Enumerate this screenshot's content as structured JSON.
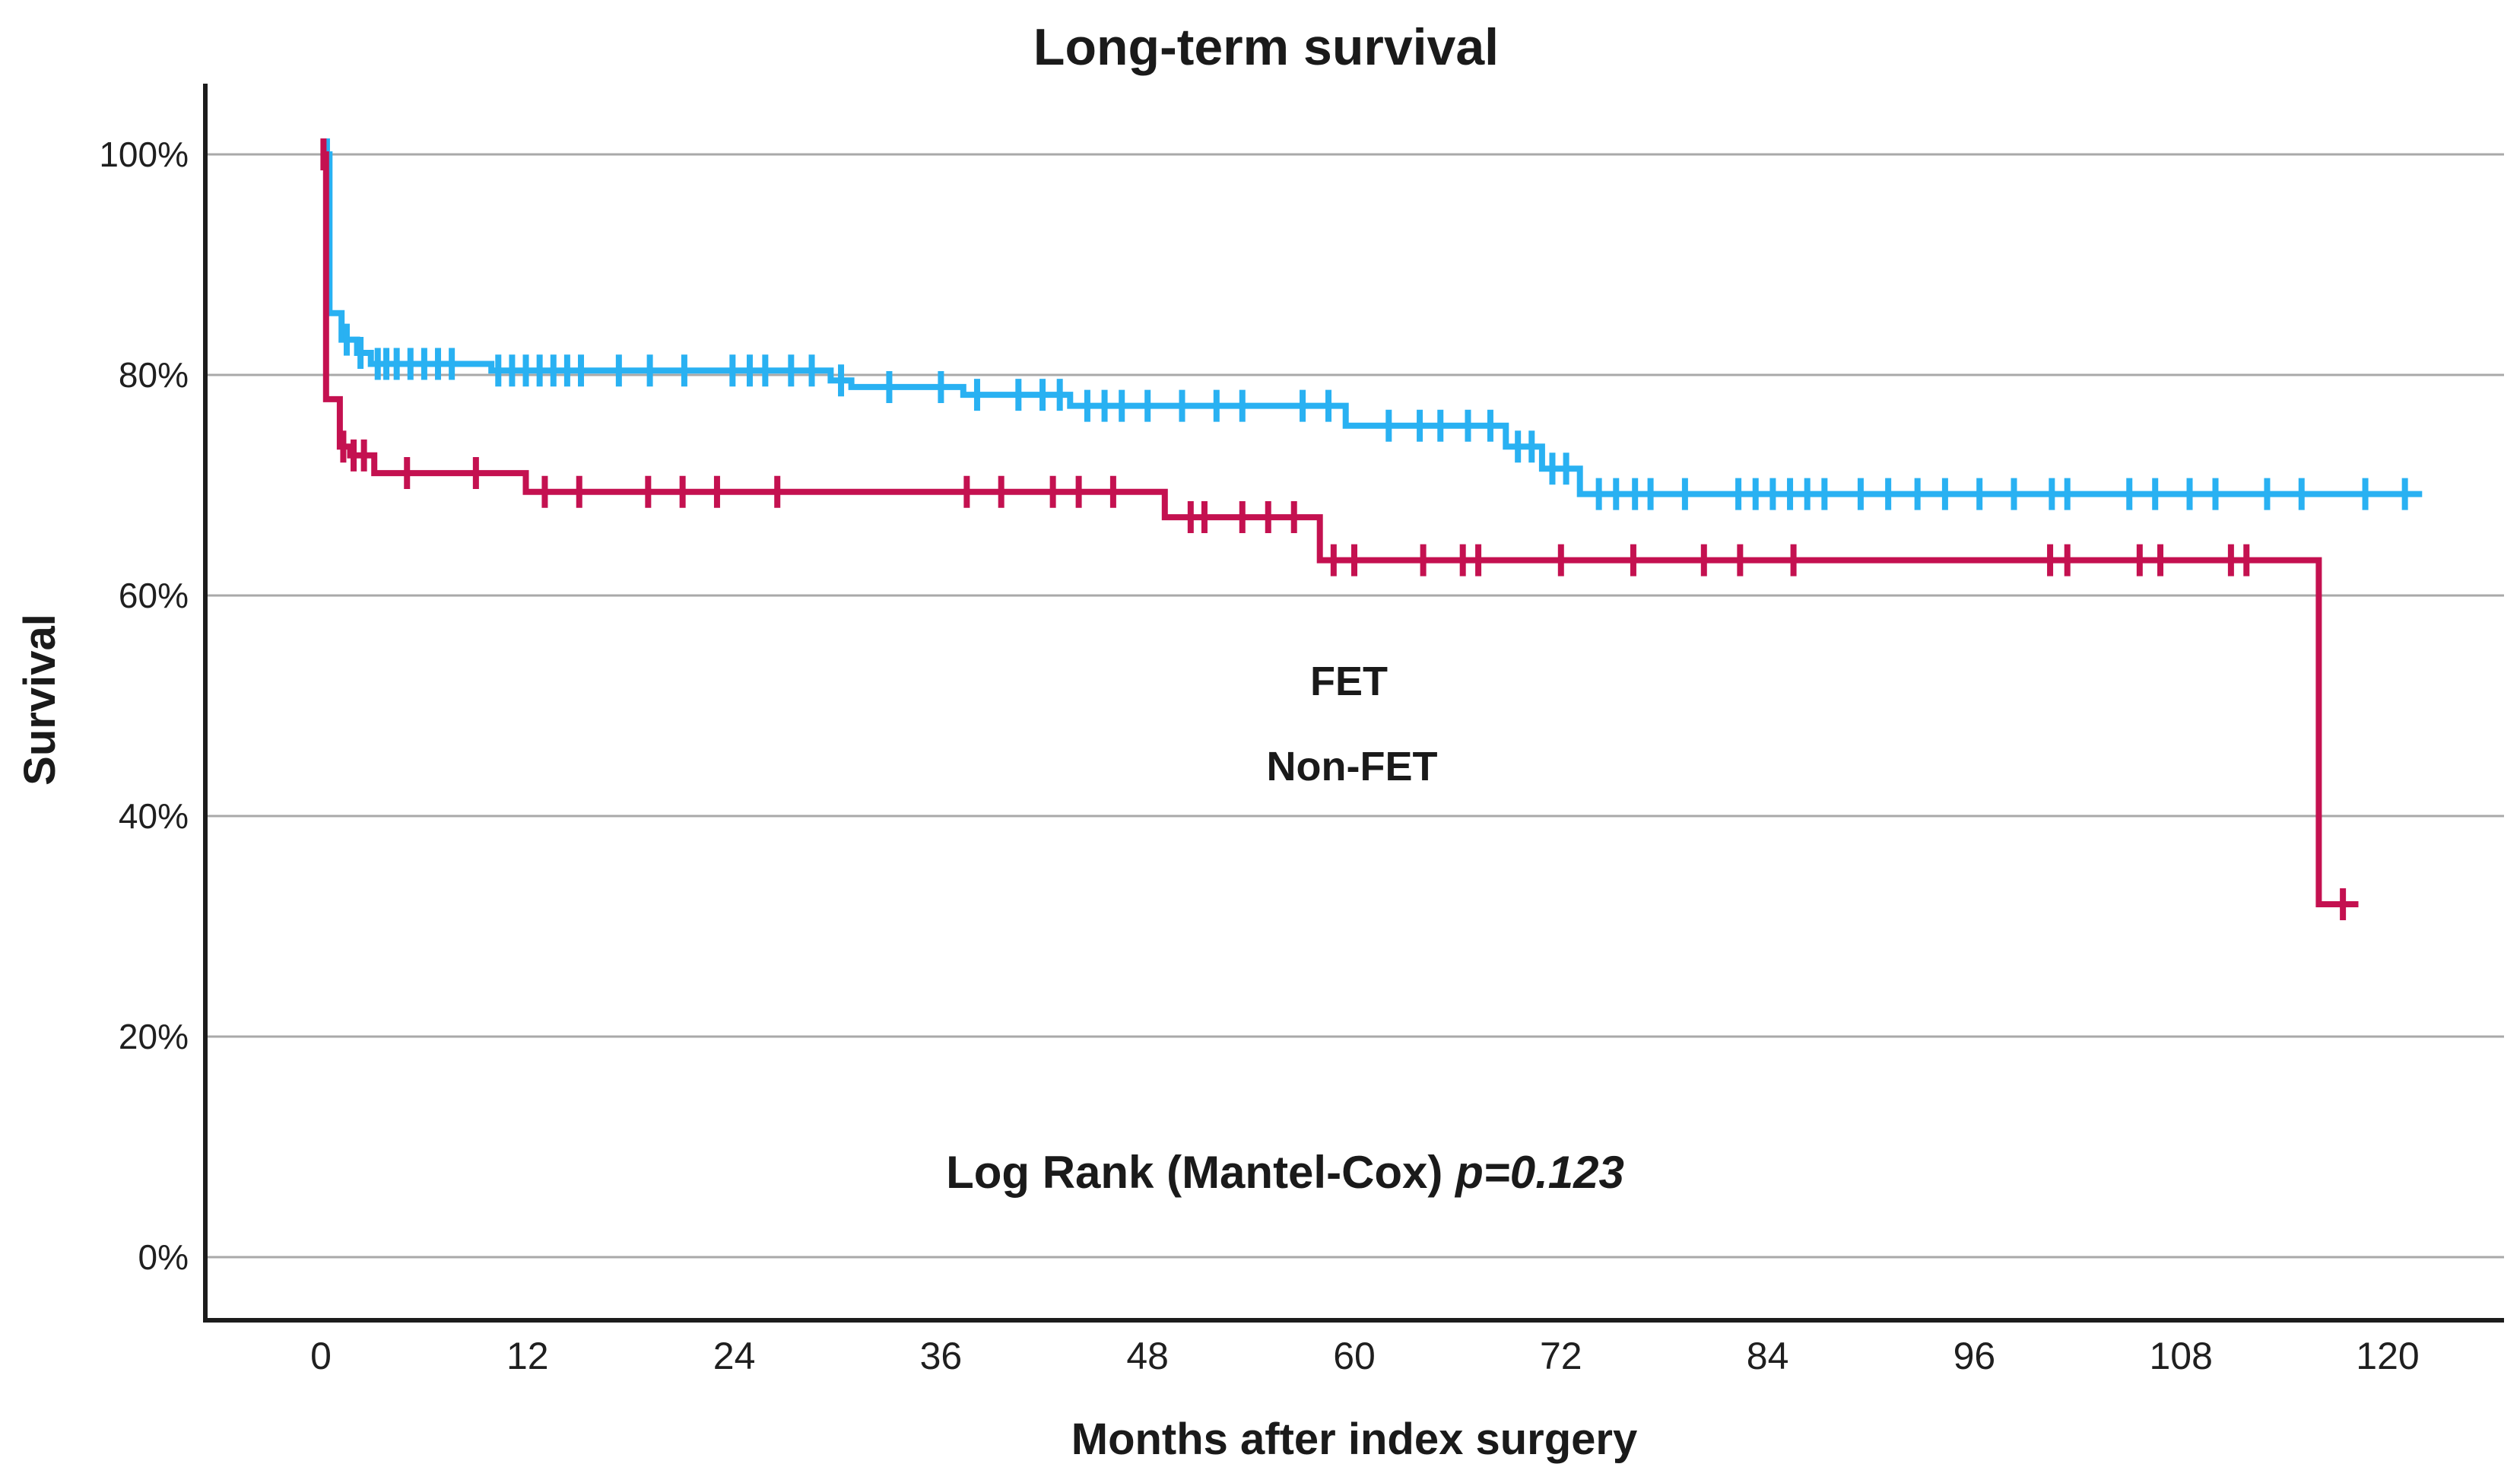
{
  "title": "Long-term survival",
  "colors": {
    "fet_curve": "#C41150",
    "nonfet_curve": "#29B1F2",
    "fet_label": "#ED1C4E",
    "nonfet_label": "#4A92E0",
    "grid": "#A9A9A9",
    "axis": "#1C1C1C",
    "text": "#1A1A1A"
  },
  "chart_data": {
    "type": "line",
    "subtype": "kaplan-meier-step",
    "title": "Long-term survival",
    "xlabel": "Months after index surgery",
    "ylabel": "Survival",
    "annotation": {
      "prefix": "Log Rank (Mantel-Cox) ",
      "p_value": "p=0.123"
    },
    "x_ticks": [
      0,
      12,
      24,
      36,
      48,
      60,
      72,
      84,
      96,
      108,
      120
    ],
    "y_ticks": [
      {
        "value": 0,
        "label": "0%"
      },
      {
        "value": 20,
        "label": "20%"
      },
      {
        "value": 40,
        "label": "40%"
      },
      {
        "value": 60,
        "label": "60%"
      },
      {
        "value": 80,
        "label": "80%"
      },
      {
        "value": 100,
        "label": "100%"
      }
    ],
    "xlim": [
      0,
      124
    ],
    "ylim": [
      0,
      100
    ],
    "grid": "horizontal-only",
    "legend_position": "center-inside",
    "series": [
      {
        "name": "Non-FET",
        "start": [
          0,
          100
        ],
        "steps": [
          [
            0.5,
            85.6
          ],
          [
            1.2,
            83.2
          ],
          [
            2.1,
            82.0
          ],
          [
            2.9,
            81.0
          ],
          [
            9.9,
            80.4
          ],
          [
            29.6,
            79.5
          ],
          [
            30.8,
            78.9
          ],
          [
            37.3,
            78.2
          ],
          [
            43.5,
            77.2
          ],
          [
            59.5,
            75.4
          ],
          [
            68.8,
            73.5
          ],
          [
            70.9,
            71.5
          ],
          [
            73.1,
            69.2
          ]
        ],
        "end_month": 122.0,
        "censor_ticks": [
          0.35,
          1.5,
          2.3,
          3.3,
          3.8,
          4.4,
          5.2,
          6.0,
          6.8,
          7.6,
          10.3,
          11.1,
          11.9,
          12.7,
          13.5,
          14.3,
          15.1,
          17.3,
          19.1,
          21.1,
          23.9,
          24.9,
          25.8,
          27.3,
          28.5,
          30.2,
          33.0,
          36.0,
          38.1,
          40.5,
          41.9,
          42.9,
          44.5,
          45.5,
          46.5,
          48.0,
          50.0,
          52.0,
          53.5,
          57.0,
          58.5,
          62.0,
          63.8,
          65.0,
          66.6,
          67.9,
          69.5,
          70.3,
          71.5,
          72.3,
          74.2,
          75.2,
          76.3,
          77.2,
          79.2,
          82.3,
          83.3,
          84.3,
          85.3,
          86.3,
          87.3,
          89.4,
          91.0,
          92.7,
          94.3,
          96.3,
          98.3,
          100.5,
          101.4,
          105.0,
          106.5,
          108.5,
          110.0,
          113.0,
          115.0,
          118.7,
          121.0
        ]
      },
      {
        "name": "FET",
        "start": [
          0,
          100
        ],
        "steps": [
          [
            0.3,
            77.8
          ],
          [
            1.1,
            73.5
          ],
          [
            1.7,
            72.7
          ],
          [
            3.1,
            71.1
          ],
          [
            11.9,
            69.4
          ],
          [
            49.0,
            67.1
          ],
          [
            58.0,
            63.2
          ],
          [
            116.0,
            32.0
          ]
        ],
        "end_month": 118.3,
        "censor_ticks": [
          0.15,
          1.3,
          1.9,
          2.5,
          5.0,
          9.0,
          13.0,
          15.0,
          19.0,
          21.0,
          23.0,
          26.5,
          37.5,
          39.5,
          42.5,
          44.0,
          46.0,
          50.5,
          51.3,
          53.5,
          55.0,
          56.5,
          58.8,
          60.0,
          64.0,
          66.3,
          67.2,
          72.0,
          76.2,
          80.3,
          82.4,
          85.5,
          100.4,
          101.4,
          105.6,
          106.8,
          110.9,
          111.8,
          117.4
        ]
      }
    ]
  }
}
